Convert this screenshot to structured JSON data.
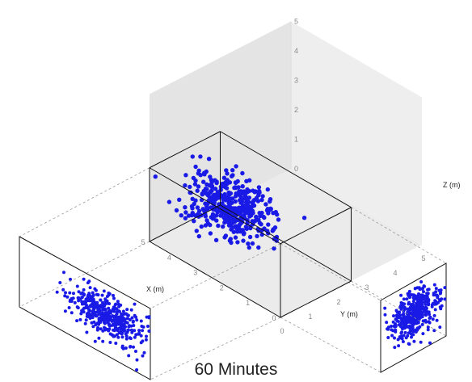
{
  "chart_data": {
    "type": "scatter",
    "projection": "3d-isometric-with-side-projections",
    "title": "60 Minutes",
    "xlabel": "X (m)",
    "ylabel": "Y (m)",
    "zlabel": "Z (m)",
    "xlim": [
      0,
      5
    ],
    "ylim": [
      0,
      5
    ],
    "zlim": [
      0,
      5
    ],
    "x_ticks": [
      "0",
      "1",
      "2",
      "3",
      "4",
      "5"
    ],
    "y_ticks": [
      "0",
      "1",
      "2",
      "3",
      "4",
      "5"
    ],
    "z_ticks": [
      "0",
      "1",
      "2",
      "3",
      "4",
      "5"
    ],
    "bounding_box": {
      "x": [
        0,
        5
      ],
      "y": [
        0,
        2.5
      ],
      "z": [
        0,
        2.5
      ]
    },
    "point_color": "#1a1ae6",
    "grid": false,
    "legend": "none",
    "cluster": {
      "count": 420,
      "x_mean": 3.3,
      "x_sd": 1.0,
      "y_mean": 1.3,
      "y_sd": 0.6,
      "z_mean": 1.4,
      "z_sd": 0.55
    }
  }
}
